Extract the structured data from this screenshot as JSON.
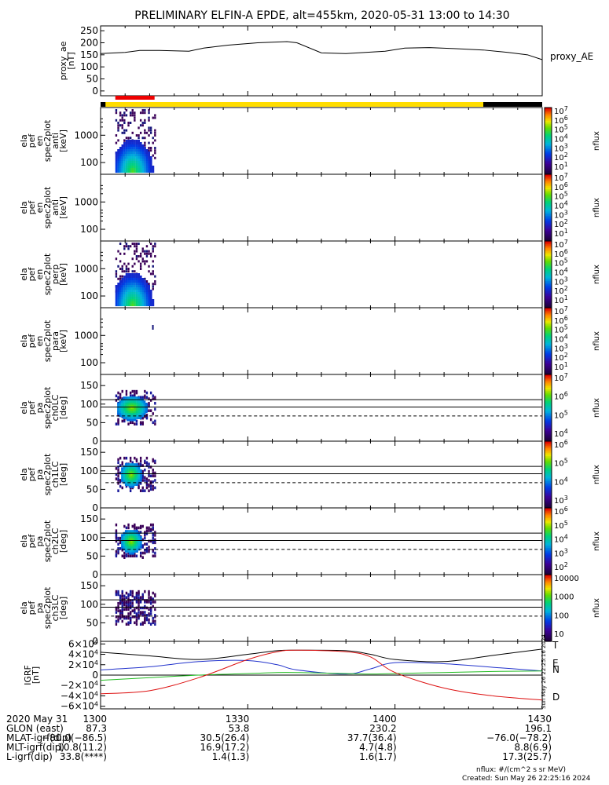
{
  "title": "PRELIMINARY ELFIN-A EPDE, alt=455km, 2020-05-31 13:00 to 14:30",
  "colors": {
    "ae_line": "#000000",
    "bar_black": "#000000",
    "bar_yellow": "#ffdd00",
    "bar_red": "#ee0000",
    "igrf_T": "#000000",
    "igrf_N": "#2233cc",
    "igrf_E": "#22bb22",
    "igrf_D": "#dd1111"
  },
  "chart_data": [
    {
      "type": "line",
      "name": "proxy_ae",
      "ylabel_lines": [
        "proxy_ae",
        "[nT]"
      ],
      "legend": "proxy_AE",
      "ylim": [
        -20,
        270
      ],
      "yticks": [
        "250",
        "200",
        "150",
        "100",
        "50",
        "0"
      ],
      "ytick_values": [
        250,
        200,
        150,
        100,
        50,
        0
      ],
      "x_minutes": [
        0,
        5,
        8,
        12,
        18,
        21,
        26,
        32,
        38,
        40,
        45,
        50,
        58,
        62,
        67,
        72,
        78,
        83,
        87,
        90
      ],
      "values": [
        155,
        160,
        168,
        168,
        165,
        178,
        190,
        200,
        205,
        200,
        158,
        155,
        165,
        178,
        180,
        176,
        170,
        160,
        150,
        130
      ]
    },
    {
      "type": "heatmap",
      "name": "en_spec2plot_anti",
      "ylabel_lines": [
        "ela",
        "pef",
        "en",
        "spec2plot",
        "anti",
        "[keV]"
      ],
      "log_y": true,
      "yticks": [
        "1000",
        "100"
      ],
      "ytick_values": [
        1000,
        100
      ],
      "colorbar": {
        "label": "nflux",
        "ticks": [
          "10^7",
          "10^6",
          "10^5",
          "10^4",
          "10^3",
          "10^2",
          "10^1"
        ]
      },
      "active_minutes": [
        3,
        11
      ]
    },
    {
      "type": "heatmap",
      "name": "en_spec2plot_anti_empty",
      "ylabel_lines": [
        "ela",
        "pef",
        "en",
        "spec2plot",
        "anti",
        "[keV]"
      ],
      "log_y": true,
      "yticks": [
        "1000",
        "100"
      ],
      "ytick_values": [
        1000,
        100
      ],
      "colorbar": {
        "label": "nflux",
        "ticks": [
          "10^7",
          "10^6",
          "10^5",
          "10^4",
          "10^3",
          "10^2",
          "10^1"
        ]
      },
      "active_minutes": []
    },
    {
      "type": "heatmap",
      "name": "en_spec2plot_perp",
      "ylabel_lines": [
        "ela",
        "pef",
        "en",
        "spec2plot",
        "perp",
        "[keV]"
      ],
      "log_y": true,
      "yticks": [
        "1000",
        "100"
      ],
      "ytick_values": [
        1000,
        100
      ],
      "colorbar": {
        "label": "nflux",
        "ticks": [
          "10^7",
          "10^6",
          "10^5",
          "10^4",
          "10^3",
          "10^2",
          "10^1"
        ]
      },
      "active_minutes": [
        3,
        11
      ]
    },
    {
      "type": "heatmap",
      "name": "en_spec2plot_para",
      "ylabel_lines": [
        "ela",
        "pef",
        "en",
        "spec2plot",
        "para",
        "[keV]"
      ],
      "log_y": true,
      "yticks": [
        "1000",
        "100"
      ],
      "ytick_values": [
        1000,
        100
      ],
      "colorbar": {
        "label": "nflux",
        "ticks": [
          "10^7",
          "10^6",
          "10^5",
          "10^4",
          "10^3",
          "10^2",
          "10^1"
        ]
      },
      "active_minutes": []
    },
    {
      "type": "heatmap",
      "name": "pa_spec2plot_ch0LC",
      "ylabel_lines": [
        "ela",
        "pef",
        "pa",
        "spec2plot",
        "ch0LC",
        "[deg]"
      ],
      "ylim": [
        0,
        180
      ],
      "yticks": [
        "150",
        "100",
        "50",
        "0"
      ],
      "ytick_values": [
        150,
        100,
        50,
        0
      ],
      "colorbar": {
        "label": "nflux",
        "ticks": [
          "10^7",
          "10^6",
          "10^5",
          "10^4"
        ]
      },
      "active_minutes": [
        3,
        11
      ]
    },
    {
      "type": "heatmap",
      "name": "pa_spec2plot_ch1LC",
      "ylabel_lines": [
        "ela",
        "pef",
        "pa",
        "spec2plot",
        "ch1LC",
        "[deg]"
      ],
      "ylim": [
        0,
        180
      ],
      "yticks": [
        "150",
        "100",
        "50",
        "0"
      ],
      "ytick_values": [
        150,
        100,
        50,
        0
      ],
      "colorbar": {
        "label": "nflux",
        "ticks": [
          "10^6",
          "10^5",
          "10^4",
          "10^3"
        ]
      },
      "active_minutes": [
        3,
        11
      ]
    },
    {
      "type": "heatmap",
      "name": "pa_spec2plot_ch2LC",
      "ylabel_lines": [
        "ela",
        "pef",
        "pa",
        "spec2plot",
        "ch2LC",
        "[deg]"
      ],
      "ylim": [
        0,
        180
      ],
      "yticks": [
        "150",
        "100",
        "50",
        "0"
      ],
      "ytick_values": [
        150,
        100,
        50,
        0
      ],
      "colorbar": {
        "label": "nflux",
        "ticks": [
          "10^6",
          "10^5",
          "10^4",
          "10^3",
          "10^2"
        ]
      },
      "active_minutes": [
        3,
        11
      ]
    },
    {
      "type": "heatmap",
      "name": "pa_spec2plot_ch3LC",
      "ylabel_lines": [
        "ela",
        "pef",
        "pa",
        "spec2plot",
        "ch3LC",
        "[deg]"
      ],
      "ylim": [
        0,
        180
      ],
      "yticks": [
        "150",
        "100",
        "50",
        "0"
      ],
      "ytick_values": [
        150,
        100,
        50,
        0
      ],
      "colorbar": {
        "label": "nflux",
        "ticks": [
          "10000",
          "1000",
          "100",
          "10"
        ]
      },
      "active_minutes": [
        3,
        11
      ]
    },
    {
      "type": "line",
      "name": "IGRF",
      "ylabel_lines": [
        "IGRF",
        "[nT]"
      ],
      "ylim": [
        -65000,
        65000
      ],
      "yticks": [
        "6×10^4",
        "4×10^4",
        "2×10^4",
        "0",
        "−2×10^4",
        "−4×10^4",
        "−6×10^4"
      ],
      "ytick_values": [
        60000,
        40000,
        20000,
        0,
        -20000,
        -40000,
        -60000
      ],
      "x_minutes": [
        0,
        10,
        20,
        30,
        36,
        40,
        50,
        55,
        60,
        70,
        80,
        90
      ],
      "series": [
        {
          "name": "T",
          "values": [
            44000,
            37000,
            30000,
            40000,
            47000,
            48000,
            47000,
            40000,
            30000,
            26000,
            38000,
            50000
          ]
        },
        {
          "name": "N",
          "values": [
            10000,
            16000,
            26000,
            28000,
            20000,
            10000,
            2000,
            12000,
            24000,
            22000,
            15000,
            8000
          ]
        },
        {
          "name": "E",
          "values": [
            -10000,
            -5000,
            0,
            3000,
            5000,
            5000,
            3000,
            2000,
            3000,
            5000,
            7000,
            8000
          ]
        },
        {
          "name": "D",
          "values": [
            -36000,
            -30000,
            -5000,
            30000,
            45000,
            48000,
            45000,
            35000,
            5000,
            -25000,
            -40000,
            -48000
          ]
        }
      ]
    }
  ],
  "time_axis": {
    "tick_labels": [
      "1300",
      "1330",
      "1400",
      "1430"
    ],
    "tick_minutes": [
      0,
      30,
      60,
      90
    ],
    "rows": [
      {
        "label": "2020 May 31",
        "values": [
          "1300",
          "1330",
          "1400",
          "1430"
        ]
      },
      {
        "label": "GLON (east)",
        "values": [
          "87.3",
          "53.8",
          "230.2",
          "196.1"
        ]
      },
      {
        "label": "MLAT-igrf(dip)",
        "values": [
          "−80.0(−86.5)",
          "30.5(26.4)",
          "37.7(36.4)",
          "−76.0(−78.2)"
        ]
      },
      {
        "label": "MLT-igrf(dip)",
        "values": [
          "10.8(11.2)",
          "16.9(17.2)",
          "4.7(4.8)",
          "8.8(6.9)"
        ]
      },
      {
        "label": "L-igrf(dip)",
        "values": [
          "33.8(****)",
          "1.4(1.3)",
          "1.6(1.7)",
          "17.3(25.7)"
        ]
      }
    ]
  },
  "footer": {
    "nflux_units": "nflux: #/(cm^2 s sr MeV)",
    "created": "Created: Sun May 26 22:25:16 2024",
    "side_stamp": "Sun May 26 22:25:16 2024"
  }
}
